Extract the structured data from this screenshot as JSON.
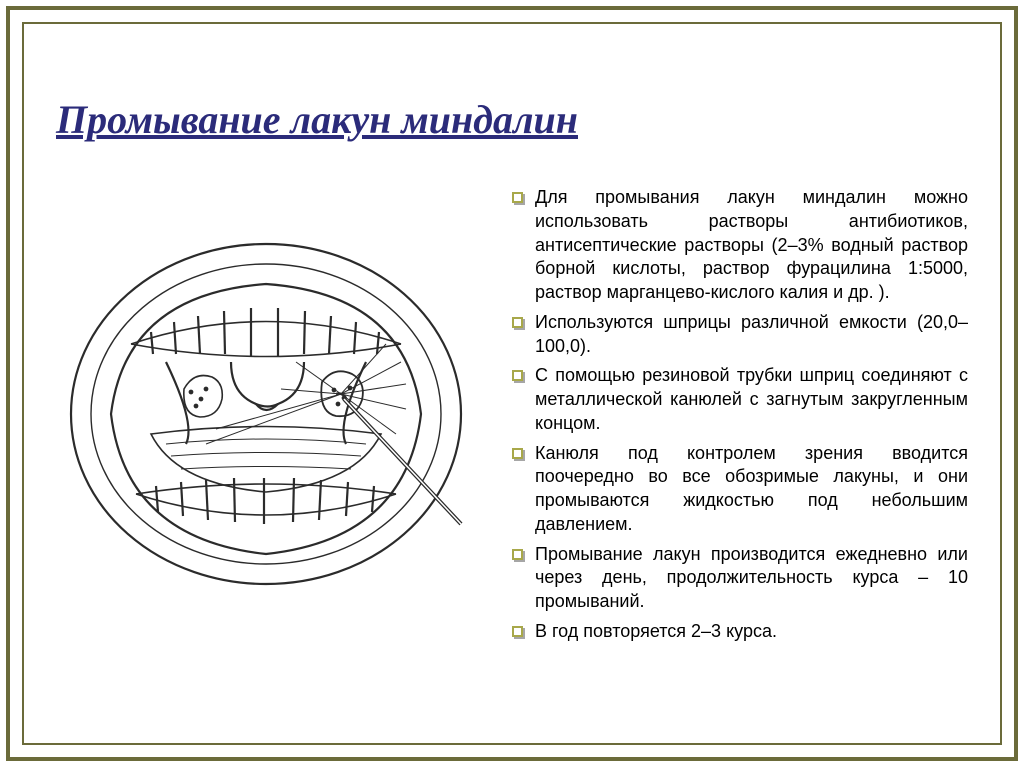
{
  "colors": {
    "frame": "#6b6b3a",
    "title": "#2b2b7a",
    "bullet_border": "#a8a84a",
    "text": "#000000"
  },
  "title": {
    "text": "Промывание лакун миндалин",
    "fontsize": 40
  },
  "body": {
    "fontsize": 18
  },
  "bullets": [
    "Для промывания лакун миндалин можно использовать растворы антибиотиков, антисептические растворы (2–3% водный раствор борной кислоты, раствор фурацилина 1:5000, раствор марганцево-кислого калия и др. ).",
    "Используются шприцы различной емкости (20,0–100,0).",
    "С помощью резиновой трубки шприц соединяют с металлической канюлей с загнутым закругленным концом.",
    "Канюля под контролем зрения вводится поочередно во все обозримые лакуны, и они промываются жидкостью под небольшим давлением.",
    "Промывание лакун производится ежедневно или через день, продолжительность курса – 10 промываний.",
    "В год повторяется 2–3 курса."
  ],
  "illustration": {
    "description": "Open mouth line drawing showing tonsils with a cannula inserted into a tonsillar lacuna",
    "stroke": "#2b2b2b",
    "fill": "#ffffff"
  }
}
